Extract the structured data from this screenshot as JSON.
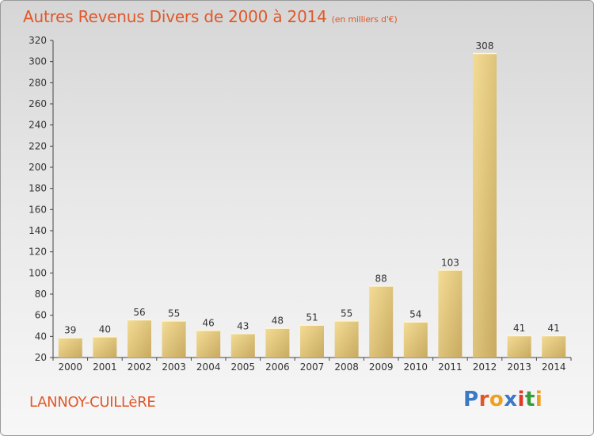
{
  "title": {
    "main": "Autres Revenus Divers de 2000 à 2014",
    "unit": "(en milliers d'€)"
  },
  "commune": "LANNOY-CUILLèRE",
  "logo": {
    "text": "Proxiti",
    "colors": [
      "#3a78c8",
      "#e0582a",
      "#f0a020",
      "#3a78c8",
      "#e03a2a",
      "#3a9a3a",
      "#f0a020"
    ]
  },
  "colors": {
    "accent": "#e0582a",
    "bar_light": "#f4dc95",
    "bar_dark": "#c8aa60"
  },
  "chart_data": {
    "type": "bar",
    "categories": [
      "2000",
      "2001",
      "2002",
      "2003",
      "2004",
      "2005",
      "2006",
      "2007",
      "2008",
      "2009",
      "2010",
      "2011",
      "2012",
      "2013",
      "2014"
    ],
    "values": [
      39,
      40,
      56,
      55,
      46,
      43,
      48,
      51,
      55,
      88,
      54,
      103,
      308,
      41,
      41
    ],
    "ylim": [
      20,
      320
    ],
    "yticks": [
      20,
      40,
      60,
      80,
      100,
      120,
      140,
      160,
      180,
      200,
      220,
      240,
      260,
      280,
      300,
      320
    ],
    "grid": false,
    "data_labels": true
  }
}
